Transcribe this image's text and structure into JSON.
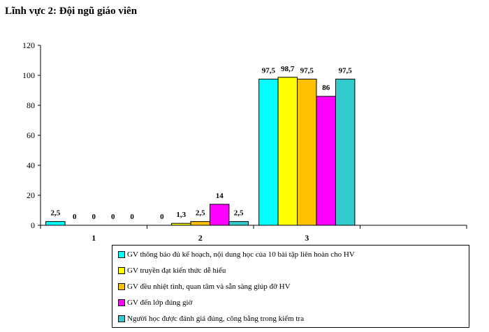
{
  "title": "Lĩnh vực 2: Đội ngũ giáo viên",
  "chart_data": {
    "type": "bar",
    "categories": [
      "1",
      "2",
      "3"
    ],
    "ylim": [
      0,
      120
    ],
    "yticks": [
      0,
      20,
      40,
      60,
      80,
      100,
      120
    ],
    "grid": false,
    "legend_position": "bottom",
    "series": [
      {
        "name": "GV thông báo đủ kế hoạch, nội dung học của 10  bài tập liên hoàn cho HV",
        "color": "#00FFFF",
        "values": [
          2.5,
          0,
          97.5
        ],
        "labels": [
          "2,5",
          "0",
          "97,5"
        ]
      },
      {
        "name": "GV truyền đạt kiến thức dễ hiểu",
        "color": "#FFFF00",
        "values": [
          0,
          1.3,
          98.7
        ],
        "labels": [
          "0",
          "1,3",
          "98,7"
        ]
      },
      {
        "name": "GV đều nhiệt tình, quan tâm và sẵn sàng giúp đỡ HV",
        "color": "#FFC000",
        "values": [
          0,
          2.5,
          97.5
        ],
        "labels": [
          "0",
          "2,5",
          "97,5"
        ]
      },
      {
        "name": "GV đến lớp đúng giờ",
        "color": "#FF00FF",
        "values": [
          0,
          14,
          86
        ],
        "labels": [
          "0",
          "14",
          "86"
        ]
      },
      {
        "name": "Người học được đánh giá đúng, công bằng trong kiểm tra",
        "color": "#33CCCC",
        "values": [
          0,
          2.5,
          97.5
        ],
        "labels": [
          "0",
          "2,5",
          "97,5"
        ]
      }
    ],
    "unlabeled_last_category": true
  }
}
